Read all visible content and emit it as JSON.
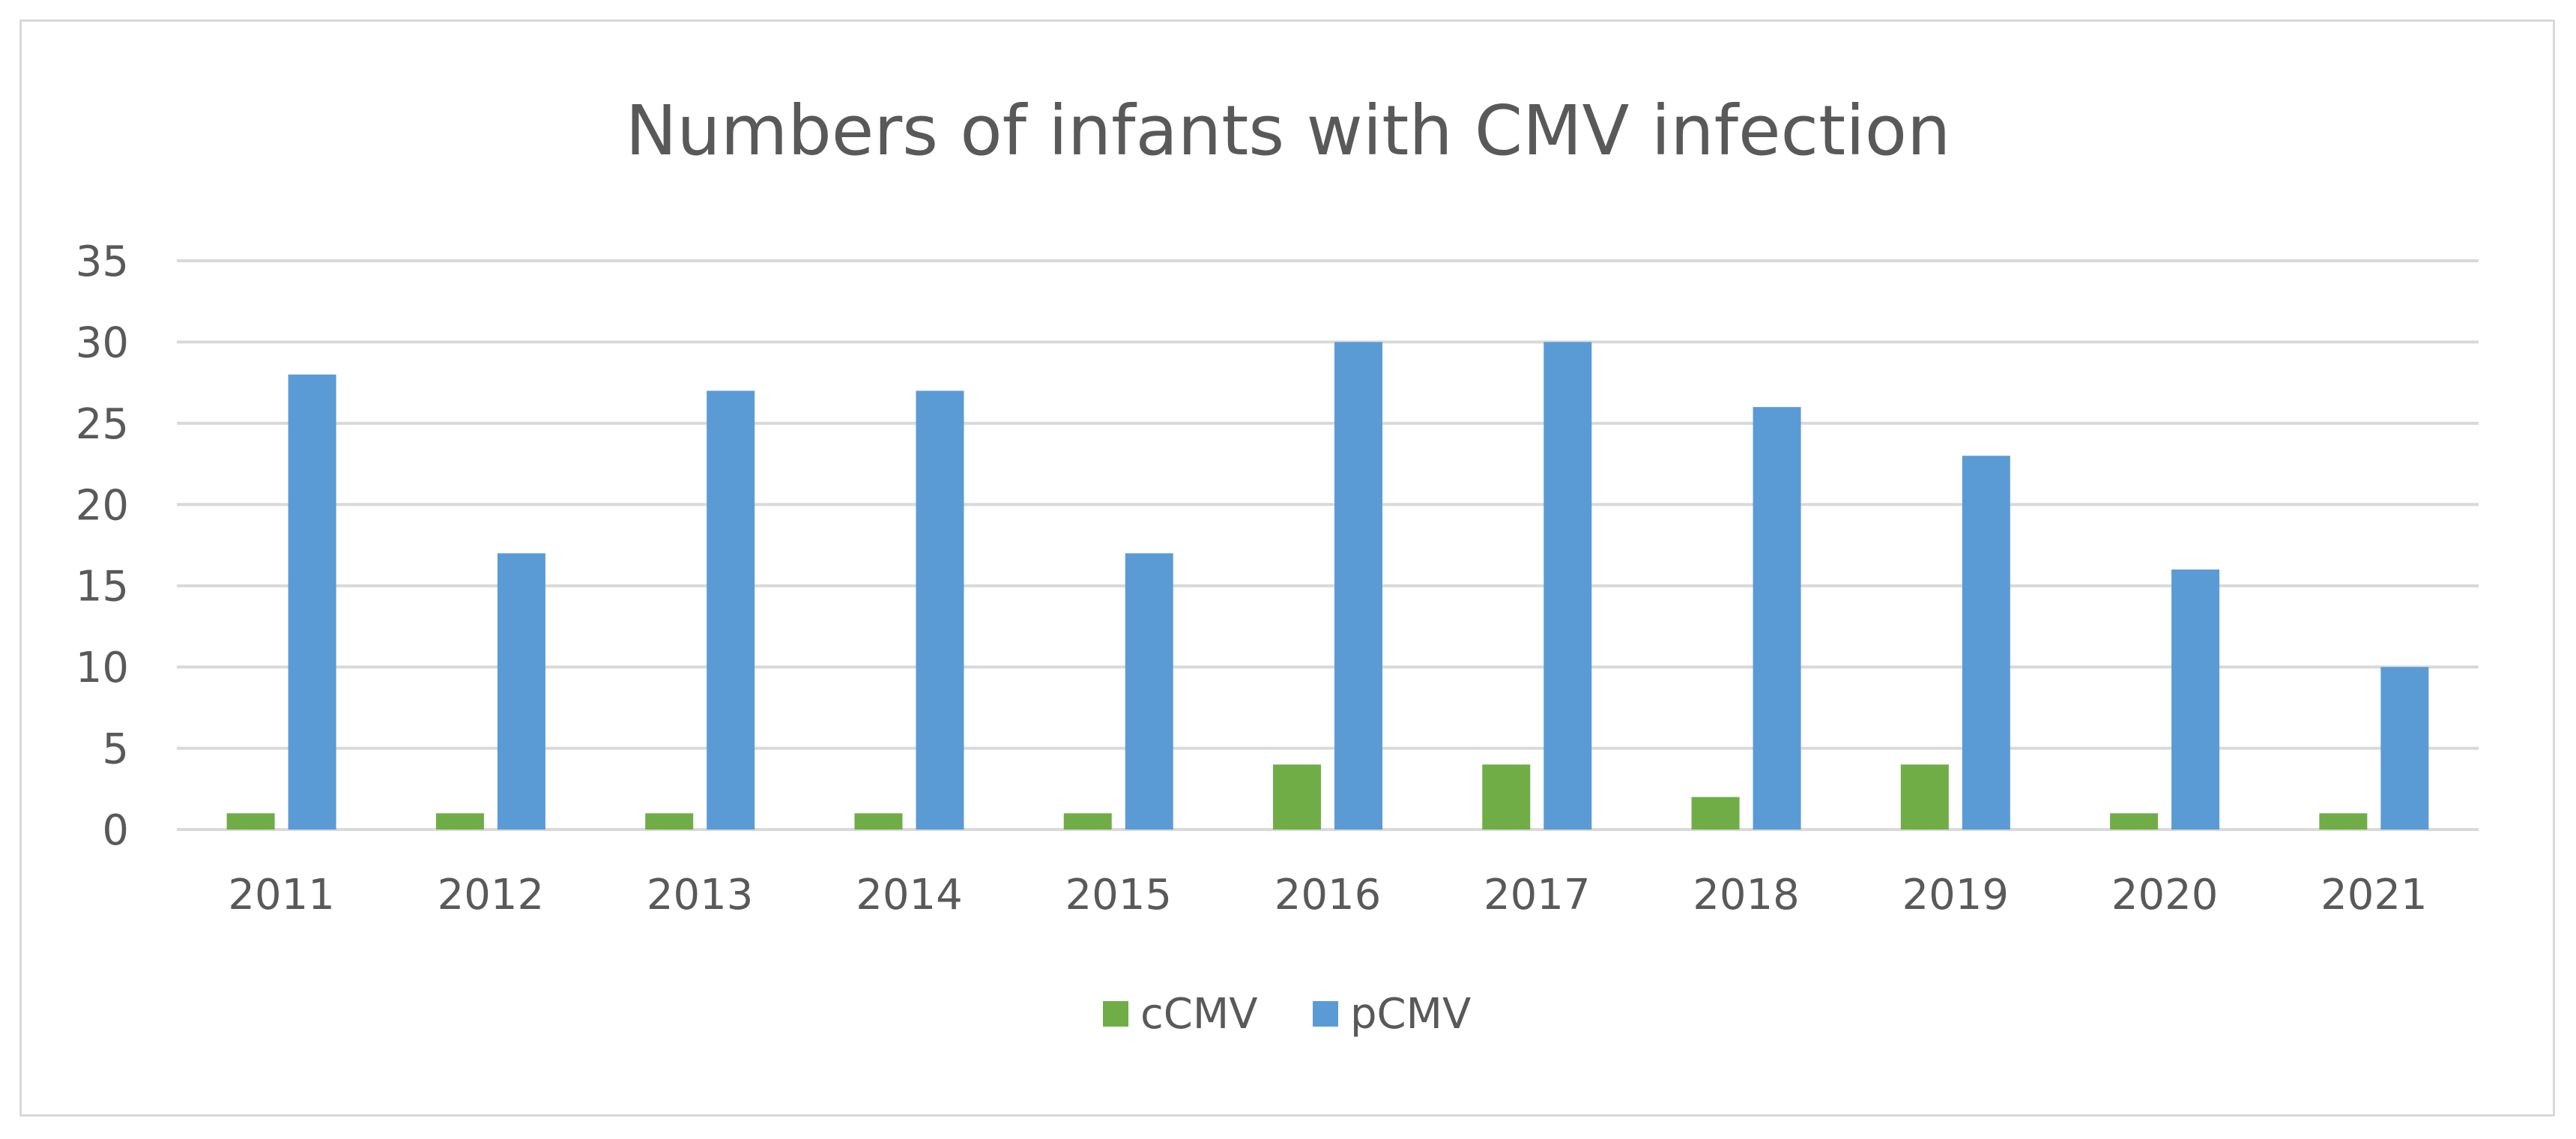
{
  "chart_data": {
    "type": "bar",
    "title": "Numbers of infants with CMV infection",
    "xlabel": "",
    "ylabel": "",
    "categories": [
      "2011",
      "2012",
      "2013",
      "2014",
      "2015",
      "2016",
      "2017",
      "2018",
      "2019",
      "2020",
      "2021"
    ],
    "series": [
      {
        "name": "cCMV",
        "color": "#70ad47",
        "values": [
          1,
          1,
          1,
          1,
          1,
          4,
          4,
          2,
          4,
          1,
          1
        ]
      },
      {
        "name": "pCMV",
        "color": "#5b9bd5",
        "values": [
          28,
          17,
          27,
          27,
          17,
          30,
          30,
          26,
          23,
          16,
          10
        ]
      }
    ],
    "ylim": [
      0,
      35
    ],
    "yticks": [
      "0",
      "5",
      "10",
      "15",
      "20",
      "25",
      "30",
      "35"
    ],
    "grid": true,
    "legend_position": "bottom-center",
    "colors": {
      "grid": "#d9d9d9",
      "axis": "#d9d9d9",
      "text": "#595959"
    }
  }
}
